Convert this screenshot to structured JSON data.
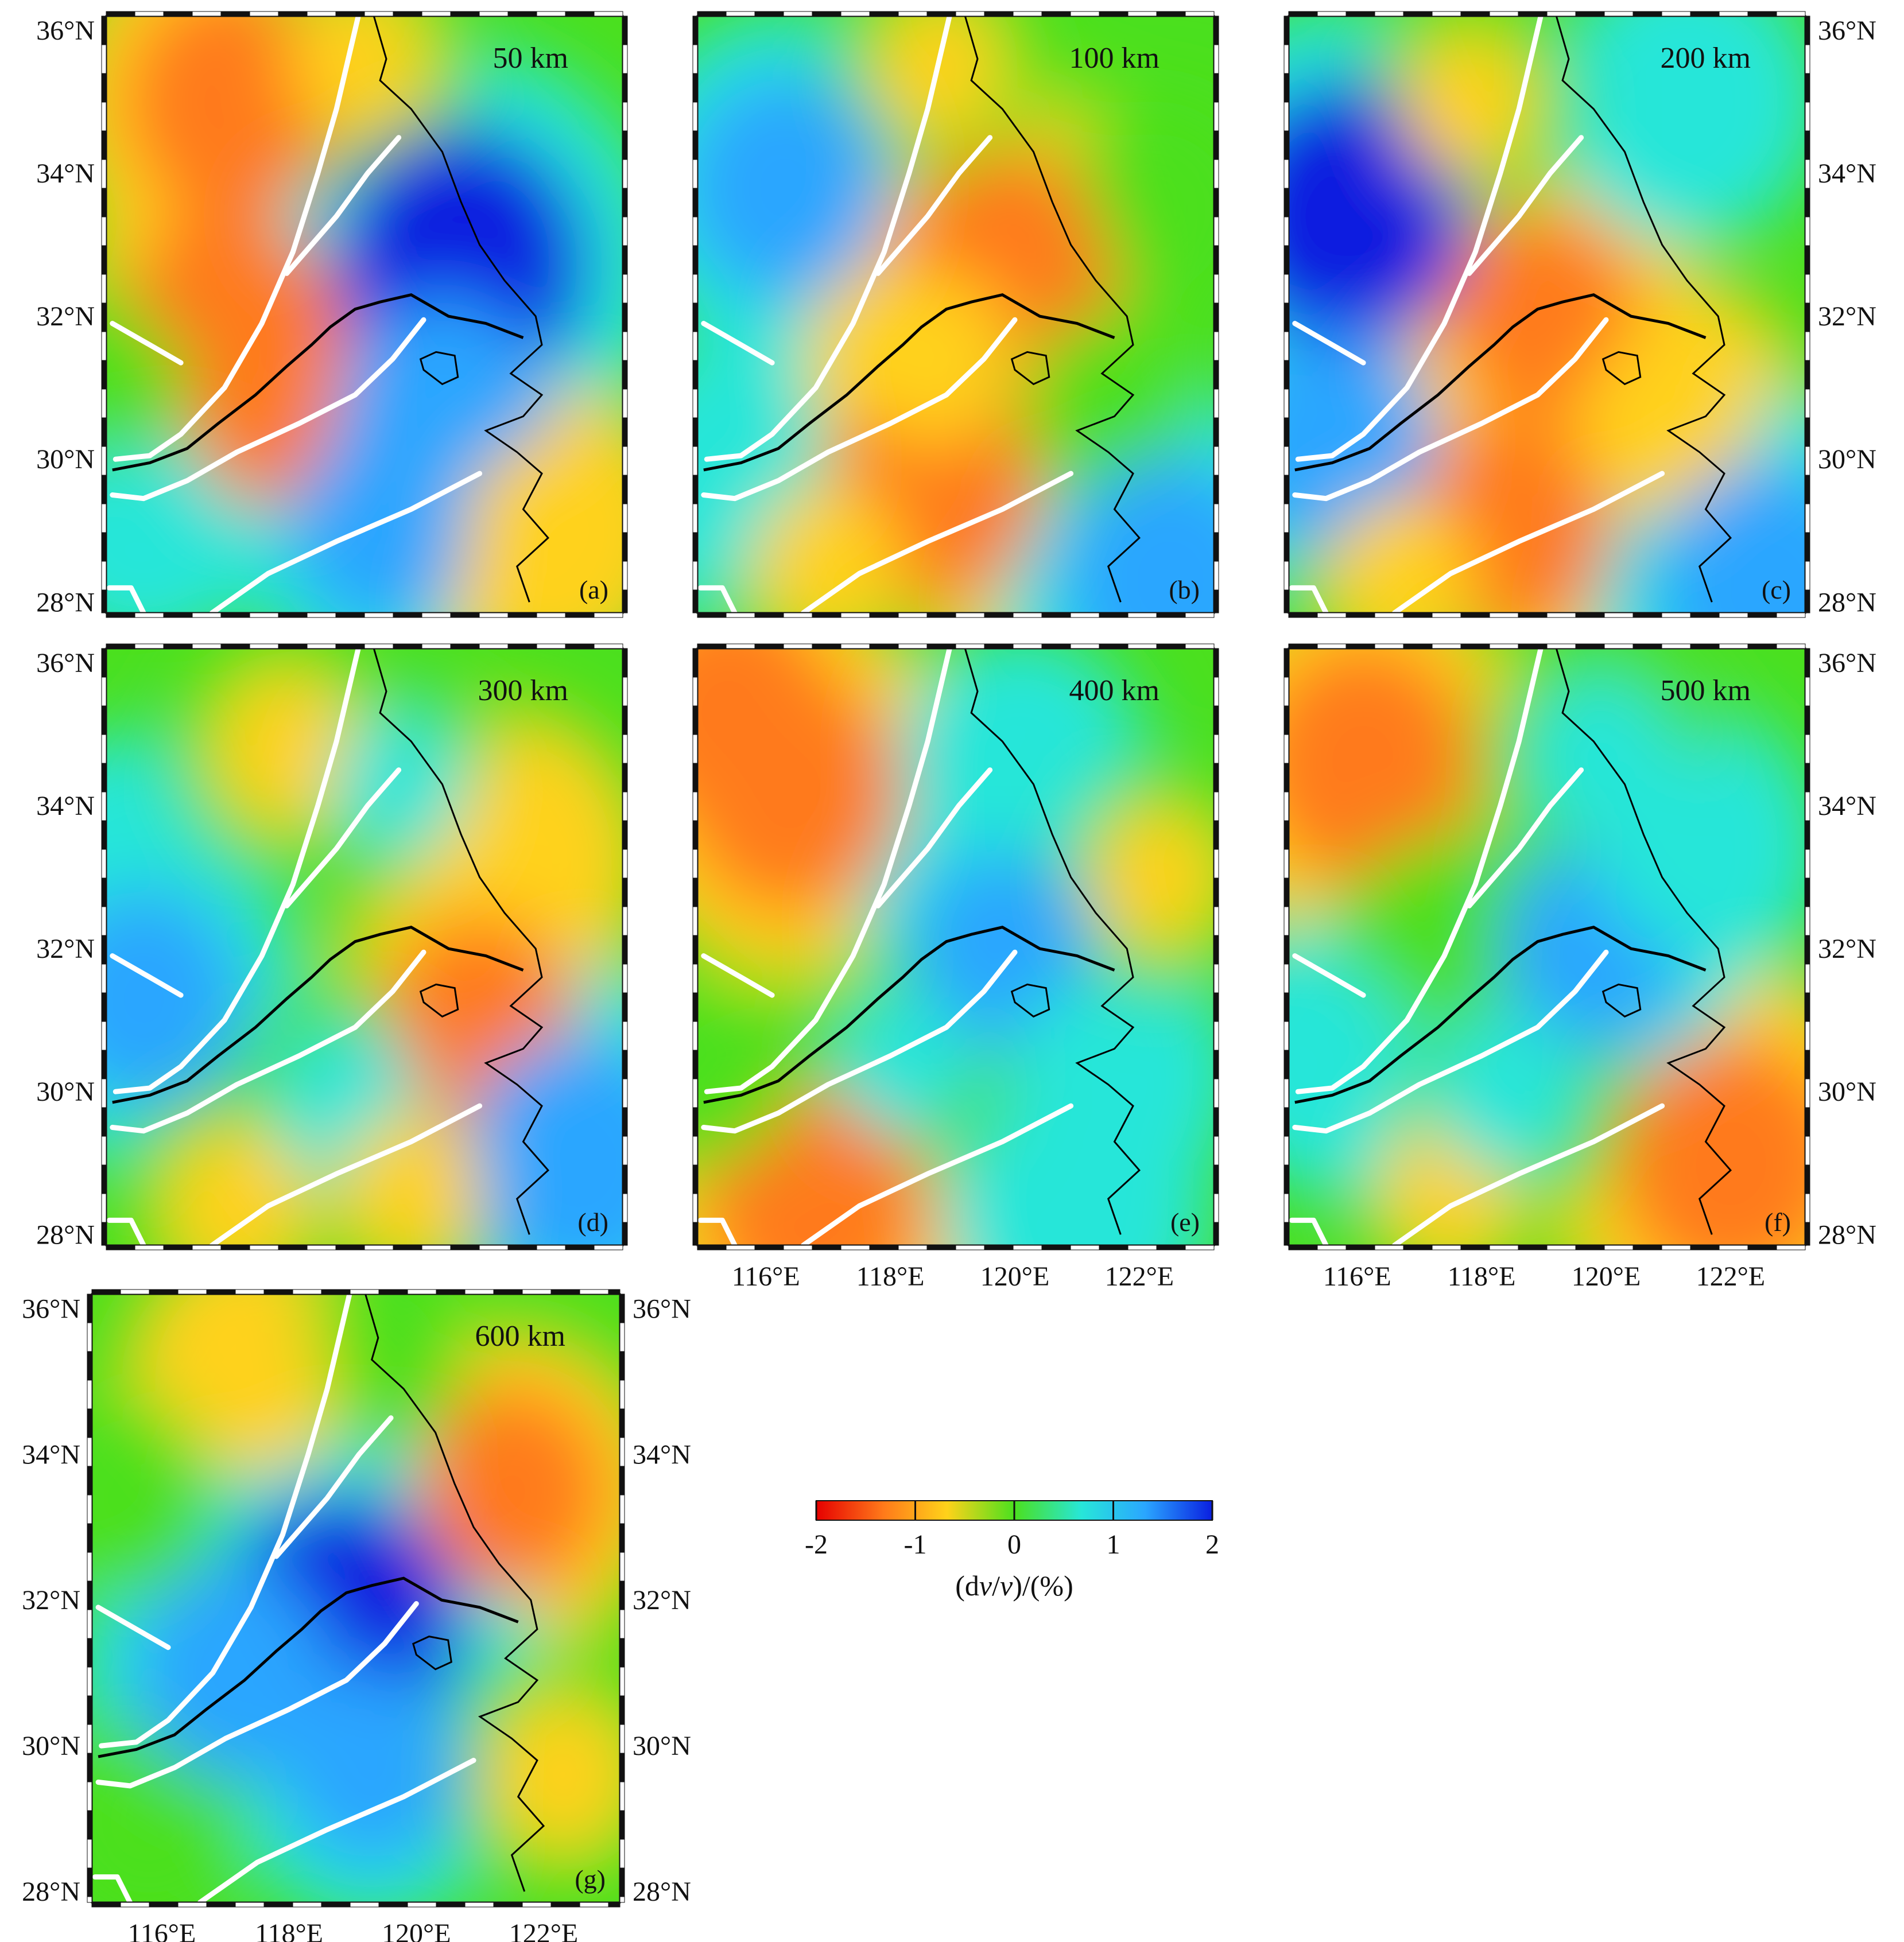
{
  "colors": {
    "scale": [
      "#e60000",
      "#ff7a1a",
      "#ffd21a",
      "#4be01e",
      "#27e6d9",
      "#2aa6ff",
      "#0a1fe0"
    ],
    "fault": "#ffffff",
    "coast": "#000000",
    "frame_dark": "#111111",
    "frame_light": "#ffffff"
  },
  "lat_ticks": [
    "36°N",
    "34°N",
    "32°N",
    "30°N",
    "28°N"
  ],
  "lon_ticks": [
    "116°E",
    "118°E",
    "120°E",
    "122°E"
  ],
  "panels": [
    {
      "id": "a",
      "depth": "50 km",
      "letter": "(a)",
      "blobs": [
        {
          "lon": 116.9,
          "lat": 35.0,
          "v": -1.4
        },
        {
          "lon": 117.6,
          "lat": 31.1,
          "v": -1.6
        },
        {
          "lon": 116.8,
          "lat": 32.1,
          "v": -1.1
        },
        {
          "lon": 120.6,
          "lat": 32.7,
          "v": 1.9
        },
        {
          "lon": 120.3,
          "lat": 30.6,
          "v": 1.4
        },
        {
          "lon": 119.3,
          "lat": 29.0,
          "v": 1.0
        },
        {
          "lon": 122.0,
          "lat": 29.0,
          "v": -0.8
        },
        {
          "lon": 115.5,
          "lat": 29.2,
          "v": 0.7
        },
        {
          "lon": 119.0,
          "lat": 35.6,
          "v": -0.5
        },
        {
          "lon": 115.2,
          "lat": 31.0,
          "v": 0.3
        }
      ]
    },
    {
      "id": "b",
      "depth": "100 km",
      "letter": "(b)",
      "blobs": [
        {
          "lon": 116.3,
          "lat": 33.8,
          "v": 1.3
        },
        {
          "lon": 119.9,
          "lat": 32.6,
          "v": -1.5
        },
        {
          "lon": 118.7,
          "lat": 29.6,
          "v": -1.4
        },
        {
          "lon": 122.5,
          "lat": 28.3,
          "v": 1.5
        },
        {
          "lon": 115.6,
          "lat": 29.6,
          "v": 0.9
        },
        {
          "lon": 118.7,
          "lat": 31.4,
          "v": -0.7
        },
        {
          "lon": 122.3,
          "lat": 33.5,
          "v": 0.3
        },
        {
          "lon": 117.0,
          "lat": 28.5,
          "v": -0.6
        },
        {
          "lon": 121.3,
          "lat": 31.0,
          "v": 0.3
        },
        {
          "lon": 118.8,
          "lat": 35.5,
          "v": -0.4
        }
      ]
    },
    {
      "id": "c",
      "depth": "200 km",
      "letter": "(c)",
      "blobs": [
        {
          "lon": 115.8,
          "lat": 33.4,
          "v": 1.8
        },
        {
          "lon": 115.6,
          "lat": 30.2,
          "v": 1.3
        },
        {
          "lon": 119.0,
          "lat": 32.0,
          "v": -1.1
        },
        {
          "lon": 118.5,
          "lat": 29.0,
          "v": -1.2
        },
        {
          "lon": 121.0,
          "lat": 30.5,
          "v": -0.9
        },
        {
          "lon": 122.6,
          "lat": 28.2,
          "v": 1.6
        },
        {
          "lon": 121.3,
          "lat": 35.0,
          "v": 0.8
        },
        {
          "lon": 117.8,
          "lat": 35.0,
          "v": -0.4
        },
        {
          "lon": 116.7,
          "lat": 28.3,
          "v": -0.6
        }
      ]
    },
    {
      "id": "d",
      "depth": "300 km",
      "letter": "(d)",
      "blobs": [
        {
          "lon": 115.3,
          "lat": 33.0,
          "v": 0.8
        },
        {
          "lon": 115.5,
          "lat": 31.3,
          "v": 1.2
        },
        {
          "lon": 121.2,
          "lat": 33.2,
          "v": -1.0
        },
        {
          "lon": 120.9,
          "lat": 31.0,
          "v": -1.1
        },
        {
          "lon": 122.5,
          "lat": 29.0,
          "v": 1.6
        },
        {
          "lon": 117.8,
          "lat": 34.8,
          "v": -0.6
        },
        {
          "lon": 117.0,
          "lat": 28.4,
          "v": -0.6
        },
        {
          "lon": 118.8,
          "lat": 29.8,
          "v": 0.6
        },
        {
          "lon": 119.8,
          "lat": 28.6,
          "v": -0.5
        },
        {
          "lon": 119.6,
          "lat": 34.3,
          "v": 0.4
        }
      ]
    },
    {
      "id": "e",
      "depth": "400 km",
      "letter": "(e)",
      "blobs": [
        {
          "lon": 116.4,
          "lat": 34.2,
          "v": -1.5
        },
        {
          "lon": 115.4,
          "lat": 35.3,
          "v": -1.4
        },
        {
          "lon": 116.8,
          "lat": 28.4,
          "v": -1.5
        },
        {
          "lon": 119.8,
          "lat": 32.0,
          "v": 1.0
        },
        {
          "lon": 121.3,
          "lat": 30.2,
          "v": 0.9
        },
        {
          "lon": 120.1,
          "lat": 34.5,
          "v": 0.7
        },
        {
          "lon": 122.3,
          "lat": 33.0,
          "v": -0.4
        },
        {
          "lon": 121.0,
          "lat": 28.3,
          "v": 0.8
        },
        {
          "lon": 118.2,
          "lat": 30.4,
          "v": 0.4
        },
        {
          "lon": 115.4,
          "lat": 30.0,
          "v": 0.2
        }
      ]
    },
    {
      "id": "f",
      "depth": "500 km",
      "letter": "(f)",
      "blobs": [
        {
          "lon": 116.1,
          "lat": 34.6,
          "v": -1.5
        },
        {
          "lon": 122.0,
          "lat": 29.0,
          "v": -1.6
        },
        {
          "lon": 119.8,
          "lat": 32.0,
          "v": 1.0
        },
        {
          "lon": 121.2,
          "lat": 33.4,
          "v": 0.9
        },
        {
          "lon": 117.5,
          "lat": 28.6,
          "v": -0.5
        },
        {
          "lon": 115.6,
          "lat": 30.5,
          "v": 0.7
        },
        {
          "lon": 119.9,
          "lat": 34.7,
          "v": 0.6
        },
        {
          "lon": 118.4,
          "lat": 30.0,
          "v": 0.6
        },
        {
          "lon": 117.1,
          "lat": 32.6,
          "v": -0.2
        }
      ]
    },
    {
      "id": "g",
      "depth": "600 km",
      "letter": "(g)",
      "blobs": [
        {
          "lon": 117.5,
          "lat": 35.0,
          "v": -0.8
        },
        {
          "lon": 121.5,
          "lat": 33.5,
          "v": -1.1
        },
        {
          "lon": 118.8,
          "lat": 31.6,
          "v": 1.8
        },
        {
          "lon": 117.1,
          "lat": 31.0,
          "v": 1.2
        },
        {
          "lon": 119.3,
          "lat": 29.7,
          "v": 1.0
        },
        {
          "lon": 122.3,
          "lat": 29.6,
          "v": -0.6
        },
        {
          "lon": 115.4,
          "lat": 33.4,
          "v": 0.2
        },
        {
          "lon": 115.8,
          "lat": 29.0,
          "v": 0.3
        },
        {
          "lon": 119.4,
          "lat": 35.4,
          "v": 0.1
        }
      ]
    }
  ],
  "colorbar": {
    "ticks": [
      "-2",
      "-1",
      "0",
      "1",
      "2"
    ],
    "title_prefix": "(d",
    "title_v1": "v",
    "title_mid": "/",
    "title_v2": "v",
    "title_suffix": ")/(%)"
  }
}
